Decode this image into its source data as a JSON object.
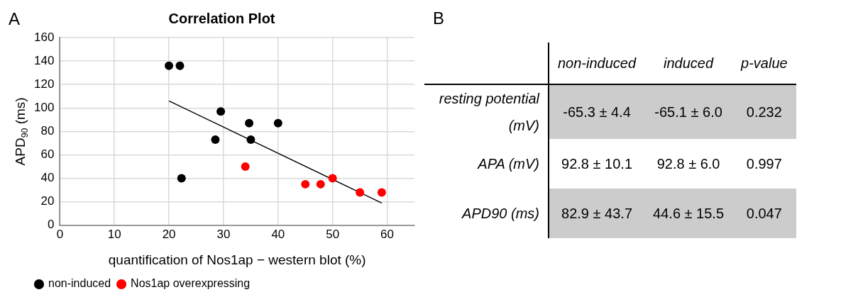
{
  "chart_data": [
    {
      "type": "scatter",
      "title": "Correlation Plot",
      "xlabel": "quantification of Nos1ap − western blot (%)",
      "ylabel": "APD$_{90}$ (ms)",
      "annotations": [
        "A"
      ],
      "xlim": [
        0,
        65
      ],
      "xticks": [
        0,
        10,
        20,
        30,
        40,
        50,
        60
      ],
      "ylim": [
        0,
        160
      ],
      "yticks": [
        0,
        20,
        40,
        60,
        80,
        100,
        120,
        140,
        160
      ],
      "grid": true,
      "legend": "bottom",
      "marker": "circle",
      "series": [
        {
          "name": "non-induced",
          "color": "#000000",
          "x": [
            20,
            22,
            22.3,
            28.5,
            29.5,
            34.7,
            35,
            40
          ],
          "values": [
            136,
            136,
            40,
            73,
            97,
            87,
            73,
            87
          ]
        },
        {
          "name": "Nos1ap overexpressing",
          "color": "#ff0000",
          "x": [
            34,
            45,
            47.8,
            50,
            55,
            59
          ],
          "values": [
            50,
            35,
            35,
            40,
            28,
            28
          ]
        },
        {
          "type": "line",
          "color": "#000000",
          "marker": "none",
          "x": [
            20,
            59
          ],
          "values": [
            106,
            19
          ]
        }
      ]
    },
    {
      "type": "other",
      "annotations": [
        "B"
      ],
      "categories": [
        "non-induced",
        "induced",
        "p-value"
      ],
      "y_categories": [
        "resting potential (mV)",
        "APA (mV)",
        "APD90 (ms)"
      ],
      "cell_labels": [
        [
          "-65.3 ± 4.4",
          "-65.1 ± 6.0",
          "0.232"
        ],
        [
          "92.8 ± 10.1",
          "92.8 ± 6.0",
          "0.997"
        ],
        [
          "82.9 ± 43.7",
          "44.6 ± 15.5",
          "0.047"
        ]
      ]
    }
  ]
}
